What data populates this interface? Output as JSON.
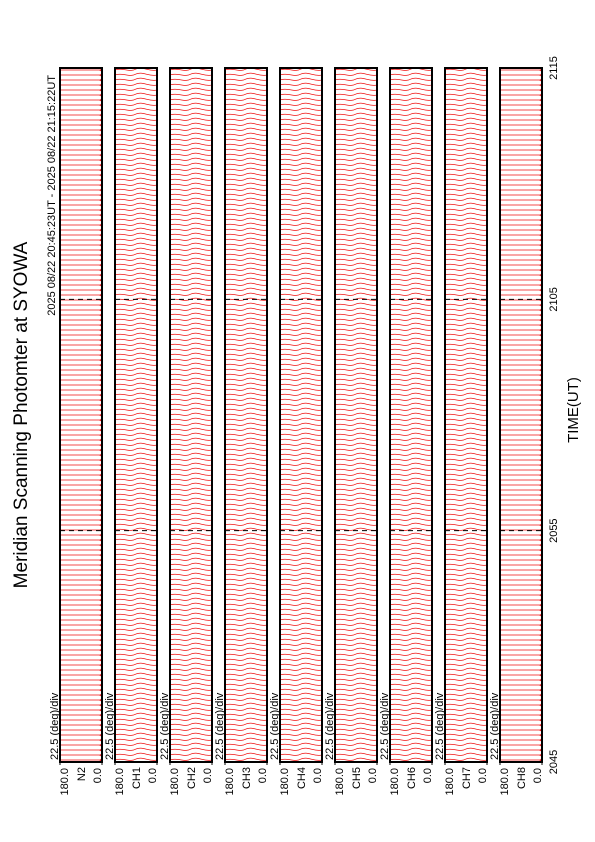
{
  "chart_data": {
    "type": "stackplot",
    "title": "Meridian Scanning Photomter at SYOWA",
    "subtitle": "2025 08/22 20:45:23UT - 2025 08/22 21:15:22UT",
    "x_label": "TIME(UT)",
    "xlim": [
      0,
      30
    ],
    "xticks": [
      {
        "value": 0,
        "label": "2045"
      },
      {
        "value": 10,
        "label": "2055"
      },
      {
        "value": 20,
        "label": "2105"
      },
      {
        "value": 30,
        "label": "2115"
      }
    ],
    "ylim": [
      0,
      180
    ],
    "yticks": [
      {
        "value": 0,
        "label": "0.0"
      },
      {
        "value": 180,
        "label": "180.0"
      }
    ],
    "color": "#e00000",
    "panels": [
      {
        "channel": "N2",
        "scale": "22.5 (deg)/div"
      },
      {
        "channel": "CH1",
        "scale": "22.5 (deg)/div"
      },
      {
        "channel": "CH2",
        "scale": "22.5 (deg)/div"
      },
      {
        "channel": "CH3",
        "scale": "22.5 (deg)/div"
      },
      {
        "channel": "CH4",
        "scale": "22.5 (deg)/div"
      },
      {
        "channel": "CH5",
        "scale": "22.5 (deg)/div"
      },
      {
        "channel": "CH6",
        "scale": "22.5 (deg)/div"
      },
      {
        "channel": "CH7",
        "scale": "22.5 (deg)/div"
      },
      {
        "channel": "CH8",
        "scale": "22.5 (deg)/div"
      }
    ]
  }
}
